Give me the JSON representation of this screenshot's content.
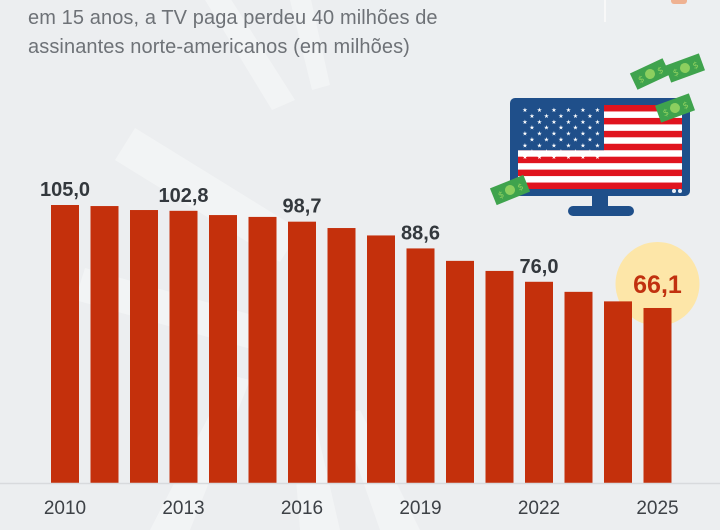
{
  "header": {
    "subtitle_line1": "em 15 anos, a TV paga perdeu 40 milhões de",
    "subtitle_line2": "assinantes norte-americanos (em milhões)"
  },
  "illustration": {
    "description": "TV monitor showing USA flag with flying dollar bills",
    "icons": [
      "tv-icon",
      "usa-flag-icon",
      "dollar-bill-icon"
    ]
  },
  "colors": {
    "bar": "#c4300c",
    "highlight_circle": "#fde6a8",
    "highlight_text": "#c1310f",
    "label_text": "#33383d",
    "background": "#eceef0",
    "tv_frame": "#1f4f8a",
    "money_green": "#3fa34d"
  },
  "chart_data": {
    "type": "bar",
    "title": "em 15 anos, a TV paga perdeu 40 milhões de assinantes norte-americanos (em milhões)",
    "xlabel": "",
    "ylabel": "",
    "ylim": [
      0,
      105
    ],
    "grid": false,
    "categories": [
      "2010",
      "2011",
      "2012",
      "2013",
      "2014",
      "2015",
      "2016",
      "2017",
      "2018",
      "2019",
      "2020",
      "2021",
      "2022",
      "2023",
      "2024",
      "2025"
    ],
    "values": [
      105.0,
      104.6,
      103.1,
      102.8,
      101.2,
      100.5,
      98.7,
      96.3,
      93.5,
      88.6,
      83.9,
      80.1,
      76.0,
      72.2,
      68.6,
      66.1
    ],
    "x_tick_labels": [
      "2010",
      "2013",
      "2016",
      "2019",
      "2022",
      "2025"
    ],
    "data_labels": [
      {
        "category": "2010",
        "text": "105,0"
      },
      {
        "category": "2013",
        "text": "102,8"
      },
      {
        "category": "2016",
        "text": "98,7"
      },
      {
        "category": "2019",
        "text": "88,6"
      },
      {
        "category": "2022",
        "text": "76,0"
      },
      {
        "category": "2025",
        "text": "66,1",
        "highlight": true
      }
    ],
    "legend": "none"
  }
}
